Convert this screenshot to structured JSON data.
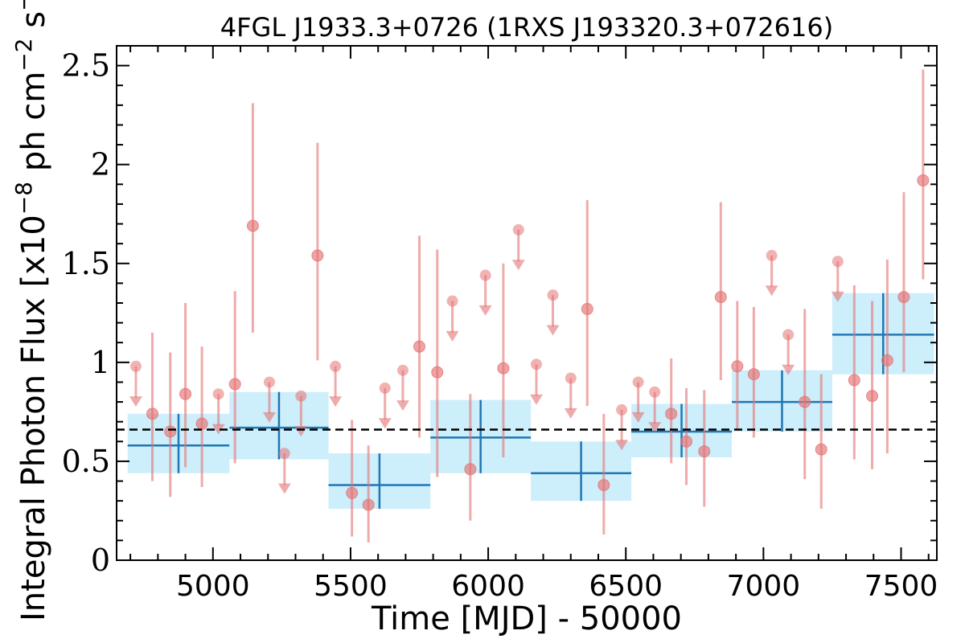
{
  "chart_data": {
    "type": "scatter",
    "title": "4FGL J1933.3+0726 (1RXS J193320.3+072616)",
    "xlabel": "Time [MJD] - 50000",
    "ylabel_parts": {
      "base": "Integral Photon Flux [x10",
      "exp1": "−8",
      "mid": " ph cm",
      "exp2": "−2",
      "mid2": " s",
      "exp3": "−1",
      "end": "]"
    },
    "xlim": [
      4650,
      7630
    ],
    "ylim": [
      0,
      2.6
    ],
    "xticks": [
      5000,
      5500,
      6000,
      6500,
      7000,
      7500
    ],
    "xtick_labels": [
      "5000",
      "5500",
      "6000",
      "6500",
      "7000",
      "7500"
    ],
    "yticks": [
      0,
      0.5,
      1,
      1.5,
      2,
      2.5
    ],
    "ytick_labels": [
      "0",
      "0.5",
      "1",
      "1.5",
      "2",
      "2.5"
    ],
    "mean_flux": 0.66,
    "colors": {
      "points": "#e57373",
      "bins": "#1f77b4",
      "bin_fill": "#cdeefb",
      "mean_line": "#000000"
    },
    "detections": [
      {
        "x": 4780,
        "y": 0.74,
        "lo": 0.4,
        "hi": 1.15
      },
      {
        "x": 4845,
        "y": 0.65,
        "lo": 0.32,
        "hi": 1.05
      },
      {
        "x": 4900,
        "y": 0.84,
        "lo": 0.47,
        "hi": 1.3
      },
      {
        "x": 4960,
        "y": 0.69,
        "lo": 0.37,
        "hi": 1.08
      },
      {
        "x": 5080,
        "y": 0.89,
        "lo": 0.49,
        "hi": 1.36
      },
      {
        "x": 5145,
        "y": 1.69,
        "lo": 1.15,
        "hi": 2.31
      },
      {
        "x": 5380,
        "y": 1.54,
        "lo": 1.01,
        "hi": 2.11
      },
      {
        "x": 5505,
        "y": 0.34,
        "lo": 0.12,
        "hi": 0.71
      },
      {
        "x": 5565,
        "y": 0.28,
        "lo": 0.09,
        "hi": 0.58
      },
      {
        "x": 5750,
        "y": 1.08,
        "lo": 0.62,
        "hi": 1.64
      },
      {
        "x": 5815,
        "y": 0.95,
        "lo": 0.42,
        "hi": 1.57
      },
      {
        "x": 5935,
        "y": 0.46,
        "lo": 0.2,
        "hi": 0.84
      },
      {
        "x": 6055,
        "y": 0.97,
        "lo": 0.52,
        "hi": 1.5
      },
      {
        "x": 6360,
        "y": 1.27,
        "lo": 0.78,
        "hi": 1.82
      },
      {
        "x": 6420,
        "y": 0.38,
        "lo": 0.13,
        "hi": 0.74
      },
      {
        "x": 6665,
        "y": 0.74,
        "lo": 0.49,
        "hi": 1.02
      },
      {
        "x": 6720,
        "y": 0.6,
        "lo": 0.38,
        "hi": 0.87
      },
      {
        "x": 6785,
        "y": 0.55,
        "lo": 0.27,
        "hi": 0.86
      },
      {
        "x": 6845,
        "y": 1.33,
        "lo": 0.91,
        "hi": 1.81
      },
      {
        "x": 6905,
        "y": 0.98,
        "lo": 0.66,
        "hi": 1.31
      },
      {
        "x": 6965,
        "y": 0.94,
        "lo": 0.62,
        "hi": 1.28
      },
      {
        "x": 7150,
        "y": 0.8,
        "lo": 0.41,
        "hi": 1.27
      },
      {
        "x": 7210,
        "y": 0.56,
        "lo": 0.26,
        "hi": 0.94
      },
      {
        "x": 7330,
        "y": 0.91,
        "lo": 0.51,
        "hi": 1.39
      },
      {
        "x": 7395,
        "y": 0.83,
        "lo": 0.46,
        "hi": 1.31
      },
      {
        "x": 7450,
        "y": 1.01,
        "lo": 0.54,
        "hi": 1.52
      },
      {
        "x": 7510,
        "y": 1.33,
        "lo": 0.95,
        "hi": 1.86
      },
      {
        "x": 7580,
        "y": 1.92,
        "lo": 1.42,
        "hi": 2.48
      }
    ],
    "upper_limits": [
      {
        "x": 4720,
        "y": 0.98
      },
      {
        "x": 5020,
        "y": 0.84
      },
      {
        "x": 5205,
        "y": 0.9
      },
      {
        "x": 5260,
        "y": 0.54
      },
      {
        "x": 5320,
        "y": 0.83
      },
      {
        "x": 5445,
        "y": 0.98
      },
      {
        "x": 5625,
        "y": 0.87
      },
      {
        "x": 5690,
        "y": 0.96
      },
      {
        "x": 5870,
        "y": 1.31
      },
      {
        "x": 5990,
        "y": 1.44
      },
      {
        "x": 6110,
        "y": 1.67
      },
      {
        "x": 6175,
        "y": 0.99
      },
      {
        "x": 6235,
        "y": 1.34
      },
      {
        "x": 6300,
        "y": 0.92
      },
      {
        "x": 6485,
        "y": 0.76
      },
      {
        "x": 6545,
        "y": 0.9
      },
      {
        "x": 6605,
        "y": 0.85
      },
      {
        "x": 7030,
        "y": 1.54
      },
      {
        "x": 7090,
        "y": 1.14
      },
      {
        "x": 7270,
        "y": 1.51
      }
    ],
    "bins": [
      {
        "x0": 4690,
        "x1": 5060,
        "y": 0.58,
        "lo": 0.44,
        "hi": 0.74
      },
      {
        "x0": 5060,
        "x1": 5420,
        "y": 0.67,
        "lo": 0.51,
        "hi": 0.85
      },
      {
        "x0": 5420,
        "x1": 5790,
        "y": 0.38,
        "lo": 0.26,
        "hi": 0.54
      },
      {
        "x0": 5790,
        "x1": 6155,
        "y": 0.62,
        "lo": 0.44,
        "hi": 0.81
      },
      {
        "x0": 6155,
        "x1": 6520,
        "y": 0.44,
        "lo": 0.3,
        "hi": 0.6
      },
      {
        "x0": 6520,
        "x1": 6885,
        "y": 0.65,
        "lo": 0.52,
        "hi": 0.79
      },
      {
        "x0": 6885,
        "x1": 7250,
        "y": 0.8,
        "lo": 0.65,
        "hi": 0.96
      },
      {
        "x0": 7250,
        "x1": 7620,
        "y": 1.14,
        "lo": 0.94,
        "hi": 1.35
      }
    ]
  }
}
